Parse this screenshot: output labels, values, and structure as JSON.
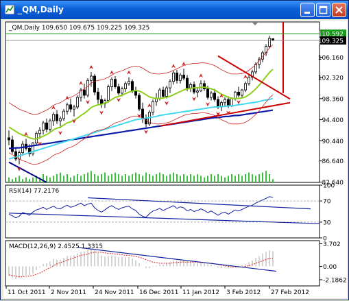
{
  "window": {
    "title": "_QM,Daily",
    "buttons": [
      "minimize",
      "maximize",
      "close"
    ]
  },
  "chart_data": [
    {
      "type": "candlestick",
      "panel": "price",
      "header": "_QM,Daily  109.650 109.675 109.225 109.325",
      "ylim": [
        82.6,
        112.8
      ],
      "yticks": [
        "110.592",
        "109.325",
        "106.160",
        "102.320",
        "98.360",
        "94.400",
        "90.440",
        "86.640",
        "82.640"
      ],
      "current_price_labels": [
        {
          "value": "110.592",
          "color": "#1a9a1a"
        },
        {
          "value": "109.325",
          "color": "#000000"
        }
      ],
      "xticks": [
        "11 Oct 2011",
        "2 Nov 2011",
        "24 Nov 2011",
        "16 Dec 2011",
        "11 Jan 2012",
        "3 Feb 2012",
        "27 Feb 2012"
      ],
      "ohlc": [
        [
          91.0,
          92.4,
          89.6,
          90.6
        ],
        [
          90.6,
          91.4,
          88.0,
          88.4
        ],
        [
          88.4,
          89.2,
          86.6,
          87.0
        ],
        [
          87.0,
          88.6,
          86.0,
          88.2
        ],
        [
          88.2,
          90.4,
          87.6,
          89.8
        ],
        [
          89.8,
          90.8,
          88.6,
          89.0
        ],
        [
          89.0,
          89.8,
          87.4,
          88.0
        ],
        [
          88.0,
          90.2,
          87.6,
          90.0
        ],
        [
          90.0,
          92.2,
          89.6,
          91.8
        ],
        [
          91.8,
          93.0,
          90.8,
          92.4
        ],
        [
          92.4,
          94.2,
          91.6,
          93.8
        ],
        [
          93.8,
          94.6,
          92.0,
          92.6
        ],
        [
          92.6,
          94.6,
          92.2,
          94.2
        ],
        [
          94.2,
          95.8,
          93.2,
          95.4
        ],
        [
          95.4,
          96.2,
          93.6,
          94.2
        ],
        [
          94.2,
          95.0,
          92.8,
          94.6
        ],
        [
          94.6,
          96.4,
          94.2,
          96.0
        ],
        [
          96.0,
          97.6,
          95.4,
          97.2
        ],
        [
          97.2,
          98.4,
          95.8,
          96.4
        ],
        [
          96.4,
          97.2,
          95.0,
          96.8
        ],
        [
          96.8,
          99.0,
          96.4,
          98.6
        ],
        [
          98.6,
          100.4,
          97.8,
          100.0
        ],
        [
          100.0,
          101.2,
          98.4,
          99.0
        ],
        [
          99.0,
          102.2,
          98.6,
          101.8
        ],
        [
          101.8,
          103.4,
          100.6,
          102.6
        ],
        [
          102.6,
          103.0,
          99.0,
          99.6
        ],
        [
          99.6,
          100.4,
          97.4,
          98.2
        ],
        [
          98.2,
          99.0,
          96.6,
          97.4
        ],
        [
          97.4,
          98.4,
          96.6,
          98.0
        ],
        [
          98.0,
          101.0,
          97.6,
          100.6
        ],
        [
          100.6,
          102.4,
          99.8,
          102.0
        ],
        [
          102.0,
          102.6,
          100.2,
          100.6
        ],
        [
          100.6,
          101.2,
          99.0,
          99.4
        ],
        [
          99.4,
          100.6,
          98.8,
          100.2
        ],
        [
          100.2,
          101.6,
          99.6,
          101.2
        ],
        [
          101.2,
          102.4,
          100.8,
          101.6
        ],
        [
          101.6,
          102.0,
          99.4,
          99.8
        ],
        [
          99.8,
          100.6,
          98.4,
          99.0
        ],
        [
          99.0,
          99.4,
          96.0,
          96.4
        ],
        [
          96.4,
          97.6,
          93.8,
          94.6
        ],
        [
          94.6,
          95.4,
          93.0,
          93.6
        ],
        [
          93.6,
          96.2,
          93.2,
          95.8
        ],
        [
          95.8,
          98.2,
          95.2,
          97.8
        ],
        [
          97.8,
          99.4,
          97.0,
          98.4
        ],
        [
          98.4,
          100.4,
          98.0,
          100.0
        ],
        [
          100.0,
          100.6,
          98.4,
          98.8
        ],
        [
          98.8,
          100.8,
          98.4,
          100.4
        ],
        [
          100.4,
          102.0,
          99.4,
          101.6
        ],
        [
          101.6,
          103.6,
          101.0,
          103.2
        ],
        [
          103.2,
          103.8,
          101.2,
          101.8
        ],
        [
          101.8,
          103.2,
          101.2,
          102.8
        ],
        [
          102.8,
          104.0,
          101.8,
          102.2
        ],
        [
          102.2,
          102.8,
          99.8,
          100.4
        ],
        [
          100.4,
          101.4,
          99.6,
          101.0
        ],
        [
          101.0,
          101.6,
          99.2,
          99.6
        ],
        [
          99.6,
          100.4,
          98.6,
          99.8
        ],
        [
          99.8,
          101.8,
          99.6,
          101.2
        ],
        [
          101.2,
          101.8,
          99.8,
          100.2
        ],
        [
          100.2,
          100.8,
          98.2,
          98.6
        ],
        [
          98.6,
          99.8,
          98.0,
          99.4
        ],
        [
          99.4,
          100.2,
          97.8,
          98.2
        ],
        [
          98.2,
          98.8,
          96.4,
          96.8
        ],
        [
          96.8,
          98.0,
          96.0,
          97.6
        ],
        [
          97.6,
          98.6,
          97.0,
          98.2
        ],
        [
          98.2,
          98.8,
          96.6,
          97.0
        ],
        [
          97.0,
          98.6,
          96.8,
          98.4
        ],
        [
          98.4,
          99.8,
          98.0,
          99.6
        ],
        [
          99.6,
          100.6,
          98.6,
          99.0
        ],
        [
          99.0,
          100.2,
          98.6,
          100.0
        ],
        [
          100.0,
          101.6,
          99.6,
          101.2
        ],
        [
          101.2,
          102.8,
          100.8,
          102.4
        ],
        [
          102.4,
          103.8,
          101.8,
          103.4
        ],
        [
          103.4,
          105.2,
          103.0,
          104.8
        ],
        [
          104.8,
          106.2,
          104.0,
          105.8
        ],
        [
          105.8,
          107.4,
          105.2,
          107.0
        ],
        [
          107.0,
          108.6,
          106.4,
          108.2
        ],
        [
          108.2,
          110.2,
          107.8,
          109.7
        ],
        [
          109.65,
          109.675,
          109.225,
          109.325
        ]
      ],
      "ma_fast_lime": [
        93.0,
        92.6,
        92.2,
        91.8,
        91.5,
        91.3,
        91.0,
        90.8,
        90.8,
        91.0,
        91.3,
        91.6,
        92.0,
        92.5,
        92.8,
        93.0,
        93.4,
        93.8,
        94.0,
        94.3,
        94.7,
        95.2,
        95.6,
        96.1,
        96.7,
        97.0,
        97.2,
        97.3,
        97.5,
        97.8,
        98.2,
        98.6,
        98.8,
        99.0,
        99.3,
        99.6,
        99.8,
        99.9,
        99.8,
        99.5,
        99.1,
        98.7,
        98.5,
        98.4,
        98.4,
        98.5,
        98.6,
        98.8,
        99.1,
        99.4,
        99.7,
        100.0,
        100.2,
        100.3,
        100.4,
        100.4,
        100.5,
        100.5,
        100.4,
        100.2,
        100.0,
        99.6,
        99.2,
        98.9,
        98.6,
        98.4,
        98.4,
        98.4,
        98.5,
        98.7,
        99.1,
        99.6,
        100.2,
        100.9,
        101.7,
        102.5,
        103.3,
        103.9
      ],
      "ma_mid_cyan": [
        87.0,
        87.2,
        87.4,
        87.6,
        87.8,
        88.0,
        88.2,
        88.4,
        88.6,
        88.8,
        89.0,
        89.2,
        89.4,
        89.6,
        89.8,
        90.0,
        90.2,
        90.4,
        90.6,
        90.8,
        91.0,
        91.2,
        91.4,
        91.6,
        91.8,
        92.0,
        92.2,
        92.4,
        92.6,
        92.8,
        93.0,
        93.2,
        93.4,
        93.6,
        93.8,
        94.0,
        94.2,
        94.4,
        94.5,
        94.6,
        94.7,
        94.8,
        94.9,
        95.0,
        95.2,
        95.3,
        95.4,
        95.5,
        95.6,
        95.7,
        95.8,
        95.9,
        96.0,
        96.1,
        96.2,
        96.3,
        96.4,
        96.5,
        96.6,
        96.7,
        96.8,
        96.8,
        96.9,
        96.9,
        97.0,
        97.0,
        97.1,
        97.2,
        97.3,
        97.4,
        97.5,
        97.6,
        97.7,
        97.8,
        98.0,
        98.1,
        98.2,
        98.4
      ],
      "ma_slow_blue": [
        89.0,
        89.0,
        89.1,
        89.1,
        89.2,
        89.3,
        89.4,
        89.5,
        89.6,
        89.7,
        89.8,
        89.9,
        90.0,
        90.1,
        90.2,
        90.3,
        90.4,
        90.5,
        90.6,
        90.7,
        90.8,
        90.9,
        91.0,
        91.1,
        91.2,
        91.3,
        91.4,
        91.5,
        91.6,
        91.7,
        91.8,
        91.9,
        92.0,
        92.1,
        92.2,
        92.3,
        92.4,
        92.5,
        92.6,
        92.7,
        92.8,
        92.9,
        93.0,
        93.1,
        93.2,
        93.3,
        93.4,
        93.5,
        93.6,
        93.7,
        93.8,
        93.9,
        94.0,
        94.1,
        94.2,
        94.3,
        94.4,
        94.5,
        94.6,
        94.7,
        94.8,
        94.8,
        94.9,
        95.0,
        95.0,
        95.1,
        95.2,
        95.2,
        95.3,
        95.4,
        95.5,
        95.6,
        95.7,
        95.8,
        95.9,
        96.0,
        96.1,
        96.2
      ],
      "fractals_up": [
        5,
        13,
        17,
        21,
        24,
        30,
        35,
        41,
        48,
        51,
        56,
        62,
        69
      ],
      "fractals_down": [
        3,
        9,
        15,
        19,
        23,
        27,
        32,
        38,
        40,
        46,
        54,
        58,
        61,
        64,
        67
      ],
      "volume": [
        3,
        2,
        3,
        4,
        2,
        3,
        2,
        3,
        4,
        3,
        5,
        4,
        3,
        4,
        5,
        6,
        4,
        5,
        3,
        4,
        5,
        4,
        5,
        6,
        7,
        5,
        4,
        5,
        6,
        4,
        5,
        6,
        5,
        4,
        5,
        4,
        5,
        6,
        5,
        4,
        6,
        5,
        4,
        5,
        6,
        5,
        4,
        5,
        6,
        5,
        4,
        5,
        4,
        5,
        4,
        5,
        4,
        3,
        4,
        5,
        4,
        5,
        4,
        3,
        4,
        5,
        4,
        5,
        4,
        5,
        6,
        5,
        4,
        5,
        6,
        7,
        5,
        2
      ],
      "annotations": [
        {
          "kind": "trendline",
          "color": "#cc0000",
          "from": [
            61,
            106.4
          ],
          "to": [
            82,
            98.3
          ]
        },
        {
          "kind": "trendline",
          "color": "#cc0000",
          "from": [
            44,
            93.2
          ],
          "to": [
            82,
            97.6
          ]
        },
        {
          "kind": "trendline",
          "color": "#000080",
          "from": [
            0,
            86.4
          ],
          "to": [
            11,
            82.6
          ]
        },
        {
          "kind": "vline",
          "color": "#cc0000",
          "x": 80,
          "from": 99.4,
          "to": 112.8
        }
      ]
    },
    {
      "type": "line",
      "panel": "rsi",
      "header": "RSI(14) 77.2176",
      "ylim": [
        0,
        100
      ],
      "yticks": [
        "100",
        "70",
        "30",
        "0"
      ],
      "levels": [
        70,
        30
      ],
      "values": [
        45,
        42,
        38,
        41,
        48,
        46,
        43,
        49,
        53,
        55,
        58,
        54,
        57,
        60,
        56,
        55,
        59,
        62,
        58,
        60,
        63,
        66,
        61,
        64,
        66,
        57,
        52,
        49,
        53,
        58,
        61,
        57,
        54,
        57,
        59,
        60,
        55,
        52,
        45,
        41,
        39,
        46,
        51,
        53,
        56,
        52,
        55,
        58,
        61,
        56,
        59,
        57,
        51,
        54,
        50,
        52,
        55,
        52,
        48,
        51,
        47,
        43,
        47,
        49,
        45,
        49,
        53,
        51,
        54,
        57,
        60,
        62,
        66,
        69,
        72,
        75,
        78,
        77
      ],
      "trendlines": [
        {
          "from": [
            23,
            76
          ],
          "to": [
            88,
            55
          ]
        },
        {
          "from": [
            0,
            47
          ],
          "to": [
            126,
            27
          ]
        }
      ]
    },
    {
      "type": "bar",
      "panel": "macd",
      "header": "MACD(12,26,9) 2.4525 1.3315",
      "ylim": [
        -3.2,
        4.2
      ],
      "yticks": [
        "3.702",
        "0.00",
        "-2.1862"
      ],
      "histogram": [
        -1.6,
        -1.9,
        -2.1,
        -1.9,
        -1.6,
        -1.4,
        -1.4,
        -1.2,
        -0.6,
        -0.2,
        0.4,
        0.5,
        0.8,
        1.2,
        1.1,
        1.1,
        1.4,
        1.7,
        1.7,
        1.8,
        2.1,
        2.4,
        2.4,
        2.7,
        2.9,
        2.6,
        2.2,
        1.8,
        1.6,
        1.7,
        1.8,
        1.7,
        1.5,
        1.5,
        1.5,
        1.5,
        1.3,
        1.0,
        0.5,
        0.0,
        -0.3,
        -0.3,
        -0.1,
        0.1,
        0.3,
        0.3,
        0.5,
        0.7,
        0.9,
        0.9,
        1.0,
        1.0,
        0.8,
        0.7,
        0.6,
        0.5,
        0.6,
        0.5,
        0.3,
        0.3,
        0.1,
        -0.2,
        -0.3,
        -0.2,
        -0.3,
        -0.2,
        0.0,
        0.1,
        0.2,
        0.4,
        0.7,
        1.0,
        1.4,
        1.7,
        2.1,
        2.4,
        2.6,
        2.5
      ],
      "signal": [
        -1.4,
        -1.5,
        -1.6,
        -1.7,
        -1.7,
        -1.6,
        -1.6,
        -1.5,
        -1.3,
        -1.1,
        -0.8,
        -0.5,
        -0.2,
        0.1,
        0.4,
        0.6,
        0.8,
        1.0,
        1.2,
        1.4,
        1.6,
        1.8,
        1.9,
        2.0,
        2.2,
        2.3,
        2.3,
        2.3,
        2.2,
        2.1,
        2.1,
        2.0,
        2.0,
        1.9,
        1.8,
        1.8,
        1.7,
        1.6,
        1.5,
        1.3,
        1.1,
        0.9,
        0.7,
        0.6,
        0.5,
        0.5,
        0.5,
        0.5,
        0.6,
        0.6,
        0.7,
        0.7,
        0.7,
        0.7,
        0.7,
        0.7,
        0.6,
        0.6,
        0.5,
        0.5,
        0.4,
        0.3,
        0.2,
        0.1,
        0.0,
        -0.1,
        -0.1,
        -0.1,
        -0.1,
        0.0,
        0.1,
        0.3,
        0.5,
        0.7,
        0.9,
        1.1,
        1.3,
        1.33
      ],
      "trendline": {
        "from": [
          20,
          3.1
        ],
        "to": [
          78,
          -0.8
        ]
      }
    }
  ]
}
